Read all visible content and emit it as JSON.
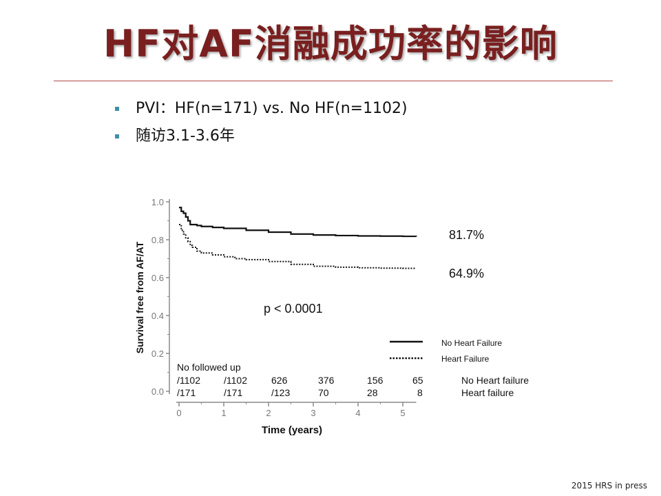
{
  "slide": {
    "title": "HF对AF消融成功率的影响",
    "bullets": [
      "PVI：HF(n=171) vs. No HF(n=1102)",
      "随访3.1-3.6年"
    ],
    "footnote": "2015 HRS in press"
  },
  "chart_data": {
    "type": "line",
    "xlabel": "Time (years)",
    "ylabel": "Survival free from AF/AT",
    "xlim": [
      0,
      5.3
    ],
    "ylim": [
      0,
      1.0
    ],
    "x_ticks": [
      0,
      1,
      2,
      3,
      4,
      5
    ],
    "y_ticks": [
      "0.0",
      "0.2",
      "0.4",
      "0.6",
      "0.8",
      "1.0"
    ],
    "grid": false,
    "series": [
      {
        "name": "No Heart Failure",
        "style": "solid",
        "end_label": "81.7%",
        "x": [
          0,
          0.05,
          0.1,
          0.15,
          0.2,
          0.25,
          0.3,
          0.4,
          0.5,
          0.75,
          1.0,
          1.5,
          2.0,
          2.5,
          3.0,
          3.5,
          4.0,
          4.5,
          5.0,
          5.3
        ],
        "y": [
          0.97,
          0.95,
          0.94,
          0.92,
          0.9,
          0.88,
          0.88,
          0.875,
          0.87,
          0.865,
          0.86,
          0.85,
          0.84,
          0.83,
          0.825,
          0.822,
          0.82,
          0.819,
          0.818,
          0.817
        ]
      },
      {
        "name": "Heart Failure",
        "style": "dotted",
        "end_label": "64.9%",
        "x": [
          0,
          0.05,
          0.1,
          0.15,
          0.2,
          0.25,
          0.3,
          0.4,
          0.5,
          0.75,
          1.0,
          1.25,
          1.5,
          2.0,
          2.5,
          3.0,
          3.5,
          4.0,
          4.5,
          5.0,
          5.3
        ],
        "y": [
          0.88,
          0.85,
          0.83,
          0.81,
          0.79,
          0.77,
          0.76,
          0.74,
          0.73,
          0.72,
          0.71,
          0.7,
          0.695,
          0.685,
          0.67,
          0.66,
          0.655,
          0.652,
          0.65,
          0.649,
          0.649
        ]
      }
    ],
    "annotation": "p < 0.0001",
    "legend": {
      "placement": "bottom-right",
      "entries": [
        "No Heart Failure",
        "Heart Failure"
      ]
    },
    "at_risk": {
      "header": "No followed up",
      "rows": [
        {
          "label": "No Heart failure",
          "values": [
            "/1102",
            "/1102",
            "626",
            "376",
            "156",
            "65"
          ]
        },
        {
          "label": "Heart failure",
          "values": [
            "/171",
            "/171",
            "/123",
            "70",
            "28",
            "8"
          ]
        }
      ]
    }
  }
}
